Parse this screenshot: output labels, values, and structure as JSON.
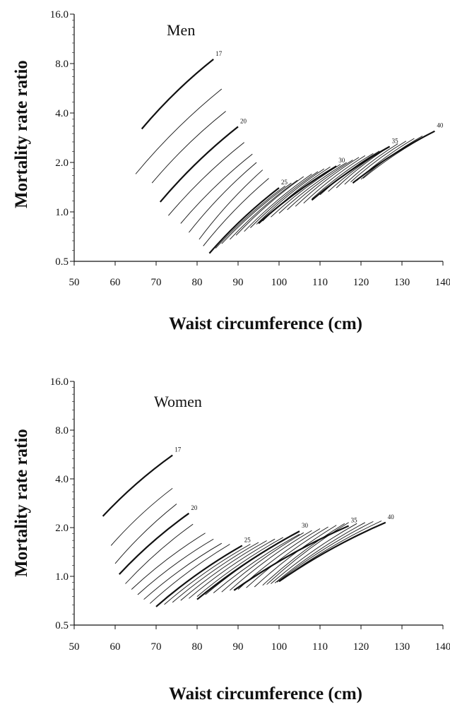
{
  "chart_data": [
    {
      "type": "line",
      "title": "Men",
      "xlabel": "Waist circumference (cm)",
      "ylabel": "Mortality rate ratio",
      "xlim": [
        50,
        140
      ],
      "ylim": [
        0.5,
        16.0
      ],
      "y_scale": "log2",
      "grid": false,
      "legend": "none",
      "x_ticks": [
        "50",
        "60",
        "70",
        "80",
        "90",
        "100",
        "110",
        "120",
        "130",
        "140"
      ],
      "y_ticks": [
        {
          "value": 0.5,
          "label": "0.5"
        },
        {
          "value": 1.0,
          "label": "1.0"
        },
        {
          "value": 2.0,
          "label": "2.0"
        },
        {
          "value": 4.0,
          "label": "4.0"
        },
        {
          "value": 8.0,
          "label": "8.0"
        },
        {
          "value": 16.0,
          "label": "16.0"
        }
      ],
      "series": [
        {
          "label": "17",
          "x": [
            66.5,
            84
          ],
          "y": [
            3.2,
            8.5
          ]
        },
        {
          "label": "",
          "x": [
            65,
            86
          ],
          "y": [
            1.7,
            5.6
          ]
        },
        {
          "label": "",
          "x": [
            69,
            87
          ],
          "y": [
            1.5,
            4.1
          ]
        },
        {
          "label": "20",
          "x": [
            71,
            90
          ],
          "y": [
            1.15,
            3.3
          ]
        },
        {
          "label": "",
          "x": [
            73,
            91.5
          ],
          "y": [
            0.95,
            2.65
          ]
        },
        {
          "label": "",
          "x": [
            76,
            93.5
          ],
          "y": [
            0.85,
            2.25
          ]
        },
        {
          "label": "",
          "x": [
            78,
            94.5
          ],
          "y": [
            0.75,
            2.0
          ]
        },
        {
          "label": "",
          "x": [
            80.5,
            96
          ],
          "y": [
            0.68,
            1.8
          ]
        },
        {
          "label": "",
          "x": [
            81.5,
            97.5
          ],
          "y": [
            0.62,
            1.6
          ]
        },
        {
          "label": "25",
          "x": [
            83,
            100
          ],
          "y": [
            0.56,
            1.4
          ]
        },
        {
          "label": "",
          "x": [
            84.5,
            101.5
          ],
          "y": [
            0.6,
            1.44
          ]
        },
        {
          "label": "",
          "x": [
            86,
            103
          ],
          "y": [
            0.64,
            1.5
          ]
        },
        {
          "label": "",
          "x": [
            88,
            104.5
          ],
          "y": [
            0.68,
            1.56
          ]
        },
        {
          "label": "",
          "x": [
            89.5,
            106
          ],
          "y": [
            0.72,
            1.64
          ]
        },
        {
          "label": "",
          "x": [
            91.5,
            108
          ],
          "y": [
            0.76,
            1.7
          ]
        },
        {
          "label": "",
          "x": [
            93,
            109.5
          ],
          "y": [
            0.8,
            1.76
          ]
        },
        {
          "label": "",
          "x": [
            94.5,
            111
          ],
          "y": [
            0.84,
            1.83
          ]
        },
        {
          "label": "",
          "x": [
            96,
            112.5
          ],
          "y": [
            0.88,
            1.88
          ]
        },
        {
          "label": "30",
          "x": [
            95,
            114
          ],
          "y": [
            0.85,
            1.9
          ]
        },
        {
          "label": "",
          "x": [
            98,
            115
          ],
          "y": [
            0.93,
            1.95
          ]
        },
        {
          "label": "",
          "x": [
            100,
            116.5
          ],
          "y": [
            0.98,
            2.0
          ]
        },
        {
          "label": "",
          "x": [
            102,
            118
          ],
          "y": [
            1.03,
            2.07
          ]
        },
        {
          "label": "",
          "x": [
            104,
            119.5
          ],
          "y": [
            1.08,
            2.15
          ]
        },
        {
          "label": "",
          "x": [
            106,
            121
          ],
          "y": [
            1.13,
            2.2
          ]
        },
        {
          "label": "",
          "x": [
            108,
            123
          ],
          "y": [
            1.2,
            2.27
          ]
        },
        {
          "label": "",
          "x": [
            110,
            124.5
          ],
          "y": [
            1.27,
            2.35
          ]
        },
        {
          "label": "",
          "x": [
            112,
            126
          ],
          "y": [
            1.33,
            2.42
          ]
        },
        {
          "label": "",
          "x": [
            114,
            127
          ],
          "y": [
            1.4,
            2.5
          ]
        },
        {
          "label": "35",
          "x": [
            108,
            127
          ],
          "y": [
            1.18,
            2.5
          ]
        },
        {
          "label": "",
          "x": [
            116,
            129
          ],
          "y": [
            1.47,
            2.6
          ]
        },
        {
          "label": "",
          "x": [
            117.5,
            131
          ],
          "y": [
            1.52,
            2.7
          ]
        },
        {
          "label": "",
          "x": [
            119,
            133
          ],
          "y": [
            1.55,
            2.8
          ]
        },
        {
          "label": "",
          "x": [
            120,
            135
          ],
          "y": [
            1.58,
            2.9
          ]
        },
        {
          "label": "",
          "x": [
            120.5,
            137
          ],
          "y": [
            1.6,
            3.0
          ]
        },
        {
          "label": "40",
          "x": [
            118,
            138
          ],
          "y": [
            1.5,
            3.1
          ]
        }
      ]
    },
    {
      "type": "line",
      "title": "Women",
      "xlabel": "Waist circumference (cm)",
      "ylabel": "Mortality rate ratio",
      "xlim": [
        50,
        140
      ],
      "ylim": [
        0.5,
        16.0
      ],
      "y_scale": "log2",
      "grid": false,
      "legend": "none",
      "x_ticks": [
        "50",
        "60",
        "70",
        "80",
        "90",
        "100",
        "110",
        "120",
        "130",
        "140"
      ],
      "y_ticks": [
        {
          "value": 0.5,
          "label": "0.5"
        },
        {
          "value": 1.0,
          "label": "1.0"
        },
        {
          "value": 2.0,
          "label": "2.0"
        },
        {
          "value": 4.0,
          "label": "4.0"
        },
        {
          "value": 8.0,
          "label": "8.0"
        },
        {
          "value": 16.0,
          "label": "16.0"
        }
      ],
      "series": [
        {
          "label": "17",
          "x": [
            57,
            74
          ],
          "y": [
            2.35,
            5.6
          ]
        },
        {
          "label": "",
          "x": [
            59,
            74
          ],
          "y": [
            1.55,
            3.5
          ]
        },
        {
          "label": "",
          "x": [
            60,
            75
          ],
          "y": [
            1.2,
            2.8
          ]
        },
        {
          "label": "20",
          "x": [
            61,
            78
          ],
          "y": [
            1.03,
            2.45
          ]
        },
        {
          "label": "",
          "x": [
            62.5,
            79
          ],
          "y": [
            0.9,
            2.1
          ]
        },
        {
          "label": "",
          "x": [
            64,
            82
          ],
          "y": [
            0.83,
            1.85
          ]
        },
        {
          "label": "",
          "x": [
            65.5,
            84
          ],
          "y": [
            0.77,
            1.7
          ]
        },
        {
          "label": "",
          "x": [
            67,
            86
          ],
          "y": [
            0.72,
            1.6
          ]
        },
        {
          "label": "",
          "x": [
            68.5,
            88
          ],
          "y": [
            0.68,
            1.58
          ]
        },
        {
          "label": "25",
          "x": [
            70,
            91
          ],
          "y": [
            0.65,
            1.55
          ]
        },
        {
          "label": "",
          "x": [
            72,
            93
          ],
          "y": [
            0.67,
            1.58
          ]
        },
        {
          "label": "",
          "x": [
            74,
            95
          ],
          "y": [
            0.69,
            1.62
          ]
        },
        {
          "label": "",
          "x": [
            76,
            97
          ],
          "y": [
            0.71,
            1.66
          ]
        },
        {
          "label": "",
          "x": [
            78,
            99
          ],
          "y": [
            0.73,
            1.7
          ]
        },
        {
          "label": "",
          "x": [
            80,
            101
          ],
          "y": [
            0.75,
            1.74
          ]
        },
        {
          "label": "",
          "x": [
            82,
            103
          ],
          "y": [
            0.77,
            1.78
          ]
        },
        {
          "label": "",
          "x": [
            84,
            105
          ],
          "y": [
            0.79,
            1.82
          ]
        },
        {
          "label": "",
          "x": [
            86,
            106
          ],
          "y": [
            0.8,
            1.86
          ]
        },
        {
          "label": "30",
          "x": [
            80,
            105
          ],
          "y": [
            0.72,
            1.9
          ]
        },
        {
          "label": "",
          "x": [
            88,
            108
          ],
          "y": [
            0.82,
            1.92
          ]
        },
        {
          "label": "",
          "x": [
            90,
            110
          ],
          "y": [
            0.83,
            1.97
          ]
        },
        {
          "label": "",
          "x": [
            92,
            112
          ],
          "y": [
            0.85,
            2.02
          ]
        },
        {
          "label": "",
          "x": [
            94,
            114
          ],
          "y": [
            0.86,
            2.07
          ]
        },
        {
          "label": "",
          "x": [
            96,
            116
          ],
          "y": [
            0.88,
            2.12
          ]
        },
        {
          "label": "",
          "x": [
            97,
            117
          ],
          "y": [
            0.89,
            2.15
          ]
        },
        {
          "label": "35",
          "x": [
            89,
            117
          ],
          "y": [
            0.82,
            2.05
          ]
        },
        {
          "label": "",
          "x": [
            98,
            119
          ],
          "y": [
            0.9,
            2.12
          ]
        },
        {
          "label": "",
          "x": [
            99,
            121
          ],
          "y": [
            0.91,
            2.15
          ]
        },
        {
          "label": "",
          "x": [
            99.5,
            123
          ],
          "y": [
            0.92,
            2.18
          ]
        },
        {
          "label": "",
          "x": [
            100,
            125
          ],
          "y": [
            0.93,
            2.2
          ]
        },
        {
          "label": "40",
          "x": [
            100,
            126
          ],
          "y": [
            0.93,
            2.15
          ]
        }
      ]
    }
  ]
}
